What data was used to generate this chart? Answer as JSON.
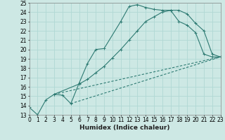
{
  "xlabel": "Humidex (Indice chaleur)",
  "bg_color": "#cde8e4",
  "grid_color": "#b0d8d4",
  "line_color": "#2d7a72",
  "marker": "+",
  "lines": [
    {
      "x": [
        0,
        1,
        2,
        3,
        4,
        5,
        6,
        7,
        8,
        9,
        11,
        12,
        13,
        14,
        15,
        16,
        17,
        18,
        19,
        20,
        21,
        22,
        23
      ],
      "y": [
        13.8,
        13.0,
        14.6,
        15.2,
        15.1,
        14.2,
        16.4,
        18.5,
        20.0,
        20.1,
        23.0,
        24.6,
        24.8,
        24.5,
        24.3,
        24.2,
        24.2,
        23.0,
        22.6,
        21.8,
        19.5,
        19.2,
        19.2
      ]
    },
    {
      "x": [
        3,
        6,
        7,
        8,
        9,
        10,
        11,
        12,
        13,
        14,
        15,
        16,
        17,
        18,
        19,
        20,
        21,
        22,
        23
      ],
      "y": [
        15.2,
        16.3,
        16.8,
        17.5,
        18.2,
        19.1,
        20.0,
        21.0,
        22.0,
        23.0,
        23.5,
        24.0,
        24.2,
        24.2,
        23.8,
        22.8,
        22.0,
        19.5,
        19.2
      ]
    },
    {
      "x": [
        3,
        23
      ],
      "y": [
        15.2,
        19.2
      ]
    },
    {
      "x": [
        5,
        23
      ],
      "y": [
        14.2,
        19.2
      ]
    }
  ],
  "xlim": [
    0,
    23
  ],
  "ylim": [
    13,
    25
  ],
  "yticks": [
    13,
    14,
    15,
    16,
    17,
    18,
    19,
    20,
    21,
    22,
    23,
    24,
    25
  ],
  "xticks": [
    0,
    1,
    2,
    3,
    4,
    5,
    6,
    7,
    8,
    9,
    10,
    11,
    12,
    13,
    14,
    15,
    16,
    17,
    18,
    19,
    20,
    21,
    22,
    23
  ],
  "tick_fontsize": 5.5,
  "xlabel_fontsize": 6.5
}
